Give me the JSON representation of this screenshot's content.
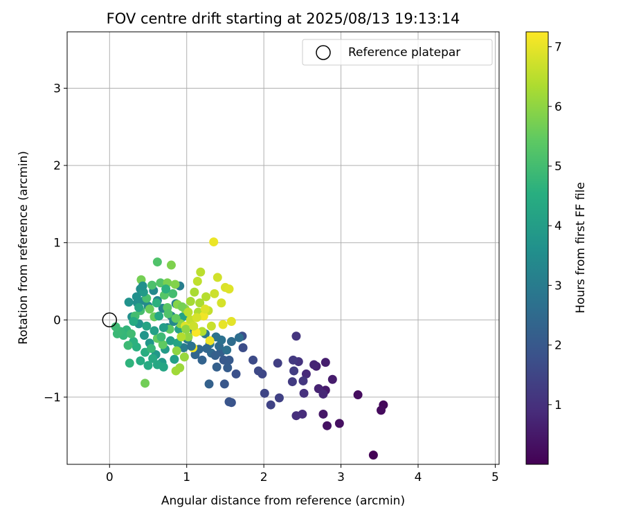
{
  "chart_data": {
    "type": "scatter",
    "title": "FOV centre drift starting at 2025/08/13 19:13:14",
    "xlabel": "Angular distance from reference (arcmin)",
    "ylabel": "Rotation from reference (arcmin)",
    "xlim": [
      -0.55,
      5.05
    ],
    "ylim": [
      -1.87,
      3.73
    ],
    "xticks": [
      0,
      1,
      2,
      3,
      4,
      5
    ],
    "xtick_labels": [
      "0",
      "1",
      "2",
      "3",
      "4",
      "5"
    ],
    "yticks": [
      -1,
      0,
      1,
      2,
      3
    ],
    "ytick_labels": [
      "−1",
      "0",
      "1",
      "2",
      "3"
    ],
    "grid": true,
    "legend": {
      "position": "top-right",
      "label": "Reference platepar",
      "marker": "open-circle"
    },
    "reference_point": {
      "x": 0,
      "y": 0
    },
    "colorbar": {
      "label": "Hours from first FF file",
      "range": [
        0,
        7.25
      ],
      "ticks": [
        1,
        2,
        3,
        4,
        5,
        6,
        7
      ],
      "tick_labels": [
        "1",
        "2",
        "3",
        "4",
        "5",
        "6",
        "7"
      ],
      "colormap": "viridis"
    },
    "points": [
      [
        3.42,
        -1.75,
        0.05
      ],
      [
        3.55,
        -1.1,
        0.15
      ],
      [
        3.52,
        -1.17,
        0.2
      ],
      [
        3.22,
        -0.97,
        0.25
      ],
      [
        2.98,
        -1.34,
        0.3
      ],
      [
        2.82,
        -1.37,
        0.35
      ],
      [
        2.77,
        -1.22,
        0.45
      ],
      [
        2.8,
        -0.91,
        0.5
      ],
      [
        2.89,
        -0.77,
        0.55
      ],
      [
        2.8,
        -0.55,
        0.6
      ],
      [
        2.68,
        -0.6,
        0.65
      ],
      [
        2.71,
        -0.89,
        0.7
      ],
      [
        2.65,
        -0.58,
        0.75
      ],
      [
        2.77,
        -0.96,
        0.8
      ],
      [
        2.55,
        -0.7,
        0.85
      ],
      [
        2.5,
        -1.22,
        0.9
      ],
      [
        2.42,
        -1.24,
        0.95
      ],
      [
        2.52,
        -0.95,
        1.0
      ],
      [
        2.45,
        -0.54,
        1.05
      ],
      [
        2.42,
        -0.21,
        1.1
      ],
      [
        2.51,
        -0.79,
        1.15
      ],
      [
        2.38,
        -0.52,
        1.2
      ],
      [
        2.37,
        -0.8,
        1.25
      ],
      [
        2.39,
        -0.66,
        1.3
      ],
      [
        2.18,
        -0.56,
        1.35
      ],
      [
        2.2,
        -1.01,
        1.4
      ],
      [
        2.09,
        -1.1,
        1.45
      ],
      [
        2.01,
        -0.95,
        1.5
      ],
      [
        1.98,
        -0.7,
        1.55
      ],
      [
        1.93,
        -0.66,
        1.6
      ],
      [
        1.86,
        -0.52,
        1.65
      ],
      [
        1.73,
        -0.36,
        1.7
      ],
      [
        1.72,
        -0.21,
        1.75
      ],
      [
        1.64,
        -0.7,
        1.8
      ],
      [
        1.58,
        -1.07,
        1.85
      ],
      [
        1.55,
        -1.06,
        1.9
      ],
      [
        1.49,
        -0.83,
        1.95
      ],
      [
        1.48,
        -0.52,
        2.0
      ],
      [
        1.55,
        -0.52,
        2.05
      ],
      [
        1.53,
        -0.62,
        2.1
      ],
      [
        1.44,
        -0.42,
        2.15
      ],
      [
        1.39,
        -0.61,
        2.2
      ],
      [
        1.29,
        -0.83,
        2.25
      ],
      [
        1.2,
        -0.52,
        2.3
      ],
      [
        1.11,
        -0.45,
        2.35
      ],
      [
        1.16,
        -0.38,
        2.4
      ],
      [
        1.32,
        -0.43,
        2.45
      ],
      [
        1.42,
        -0.34,
        2.5
      ],
      [
        1.58,
        -0.28,
        2.55
      ],
      [
        1.68,
        -0.23,
        2.6
      ],
      [
        1.52,
        -0.39,
        2.65
      ],
      [
        1.45,
        -0.26,
        2.7
      ],
      [
        1.38,
        -0.22,
        2.75
      ],
      [
        1.3,
        -0.31,
        2.8
      ],
      [
        1.24,
        -0.18,
        2.85
      ],
      [
        1.1,
        -0.14,
        2.9
      ],
      [
        1.01,
        -0.25,
        2.95
      ],
      [
        0.96,
        -0.36,
        3.0
      ],
      [
        0.91,
        0.44,
        3.05
      ],
      [
        0.86,
        0.21,
        3.1
      ],
      [
        0.8,
        0.05,
        3.15
      ],
      [
        0.75,
        -0.1,
        3.2
      ],
      [
        0.69,
        0.15,
        3.25
      ],
      [
        0.62,
        0.25,
        3.3
      ],
      [
        0.57,
        0.38,
        3.35
      ],
      [
        0.5,
        0.18,
        3.4
      ],
      [
        0.45,
        0.25,
        3.45
      ],
      [
        0.4,
        0.4,
        3.5
      ],
      [
        0.36,
        0.22,
        3.55
      ],
      [
        0.29,
        0.04,
        3.6
      ],
      [
        0.25,
        0.23,
        3.65
      ],
      [
        0.38,
        -0.05,
        3.7
      ],
      [
        0.45,
        -0.2,
        3.75
      ],
      [
        0.52,
        -0.3,
        3.8
      ],
      [
        0.6,
        -0.45,
        3.85
      ],
      [
        0.68,
        -0.55,
        3.9
      ],
      [
        0.72,
        -0.38,
        3.95
      ],
      [
        0.79,
        -0.27,
        4.0
      ],
      [
        0.84,
        -0.51,
        4.05
      ],
      [
        0.9,
        -0.12,
        4.1
      ],
      [
        0.95,
        0.04,
        4.15
      ],
      [
        0.88,
        -0.3,
        4.2
      ],
      [
        0.7,
        -0.61,
        4.25
      ],
      [
        0.62,
        -0.58,
        4.3
      ],
      [
        0.56,
        -0.5,
        4.35
      ],
      [
        0.5,
        -0.59,
        4.4
      ],
      [
        0.4,
        -0.53,
        4.45
      ],
      [
        0.46,
        -0.42,
        4.5
      ],
      [
        0.35,
        -0.35,
        4.55
      ],
      [
        0.31,
        -0.28,
        4.6
      ],
      [
        0.26,
        -0.56,
        4.65
      ],
      [
        0.22,
        -0.13,
        4.7
      ],
      [
        0.18,
        -0.2,
        4.75
      ],
      [
        0.14,
        -0.15,
        4.8
      ],
      [
        0.1,
        -0.18,
        4.85
      ],
      [
        0.08,
        -0.09,
        4.9
      ],
      [
        0.28,
        -0.18,
        4.95
      ],
      [
        0.33,
        0.05,
        5.0
      ],
      [
        0.4,
        0.12,
        5.05
      ],
      [
        0.48,
        0.28,
        5.1
      ],
      [
        0.55,
        0.45,
        5.15
      ],
      [
        0.62,
        0.75,
        5.2
      ],
      [
        0.66,
        0.48,
        5.25
      ],
      [
        0.71,
        0.32,
        5.3
      ],
      [
        0.75,
        0.16,
        5.35
      ],
      [
        0.78,
        -0.12,
        5.4
      ],
      [
        0.69,
        -0.32,
        5.45
      ],
      [
        0.62,
        -0.24,
        5.5
      ],
      [
        0.58,
        0.04,
        5.55
      ],
      [
        0.52,
        0.14,
        5.6
      ],
      [
        0.46,
        -0.82,
        5.65
      ],
      [
        0.41,
        0.52,
        5.7
      ],
      [
        0.75,
        0.48,
        5.75
      ],
      [
        0.8,
        0.71,
        5.8
      ],
      [
        0.85,
        0.46,
        5.85
      ],
      [
        0.88,
        0.2,
        5.9
      ],
      [
        0.92,
        -0.05,
        5.95
      ],
      [
        0.98,
        0.14,
        6.0
      ],
      [
        1.02,
        -0.22,
        6.05
      ],
      [
        0.97,
        -0.48,
        6.1
      ],
      [
        0.91,
        -0.62,
        6.15
      ],
      [
        0.86,
        -0.66,
        6.2
      ],
      [
        1.05,
        0.24,
        6.25
      ],
      [
        1.1,
        0.36,
        6.3
      ],
      [
        1.15,
        0.1,
        6.35
      ],
      [
        1.2,
        -0.15,
        6.4
      ],
      [
        1.25,
        0.3,
        6.45
      ],
      [
        1.18,
        0.62,
        6.5
      ],
      [
        1.14,
        0.5,
        6.55
      ],
      [
        1.28,
        0.12,
        6.6
      ],
      [
        1.32,
        -0.08,
        6.65
      ],
      [
        1.36,
        0.34,
        6.7
      ],
      [
        1.4,
        0.55,
        6.75
      ],
      [
        1.45,
        0.22,
        6.8
      ],
      [
        1.5,
        0.42,
        6.85
      ],
      [
        1.55,
        0.4,
        6.9
      ],
      [
        1.58,
        -0.02,
        6.95
      ],
      [
        1.47,
        -0.06,
        7.0
      ],
      [
        1.35,
        1.01,
        7.05
      ],
      [
        1.3,
        -0.27,
        7.1
      ],
      [
        1.08,
        -0.36,
        7.15
      ],
      [
        1.12,
        -0.16,
        7.2
      ],
      [
        1.22,
        0.05,
        7.1
      ],
      [
        0.98,
        -0.08,
        6.9
      ],
      [
        1.05,
        0.0,
        6.6
      ],
      [
        1.17,
        0.22,
        6.3
      ],
      [
        0.94,
        0.17,
        5.7
      ],
      [
        0.82,
        0.34,
        5.0
      ],
      [
        0.73,
        0.4,
        4.6
      ],
      [
        0.64,
        0.05,
        4.3
      ],
      [
        0.58,
        -0.14,
        4.1
      ],
      [
        0.83,
        -0.02,
        3.4
      ],
      [
        1.06,
        -0.34,
        2.7
      ],
      [
        1.26,
        -0.37,
        2.4
      ],
      [
        1.37,
        -0.46,
        2.2
      ],
      [
        0.44,
        0.36,
        3.9
      ],
      [
        0.38,
        0.16,
        4.2
      ],
      [
        0.31,
        -0.02,
        4.4
      ],
      [
        0.24,
        -0.33,
        4.9
      ],
      [
        0.54,
        -0.37,
        4.8
      ],
      [
        0.67,
        -0.22,
        4.9
      ],
      [
        0.76,
        0.08,
        5.2
      ],
      [
        0.86,
        0.02,
        5.5
      ],
      [
        0.99,
        -0.12,
        6.0
      ],
      [
        1.13,
        0.03,
        6.8
      ],
      [
        1.24,
        0.14,
        6.9
      ],
      [
        1.02,
        0.1,
        6.5
      ],
      [
        1.09,
        -0.08,
        6.7
      ],
      [
        0.93,
        -0.22,
        6.4
      ],
      [
        0.87,
        -0.4,
        6.0
      ],
      [
        0.61,
        0.22,
        4.6
      ],
      [
        0.7,
        -0.1,
        4.0
      ],
      [
        0.48,
        -0.08,
        4.2
      ],
      [
        0.35,
        0.3,
        3.6
      ],
      [
        0.43,
        0.44,
        3.6
      ]
    ]
  }
}
